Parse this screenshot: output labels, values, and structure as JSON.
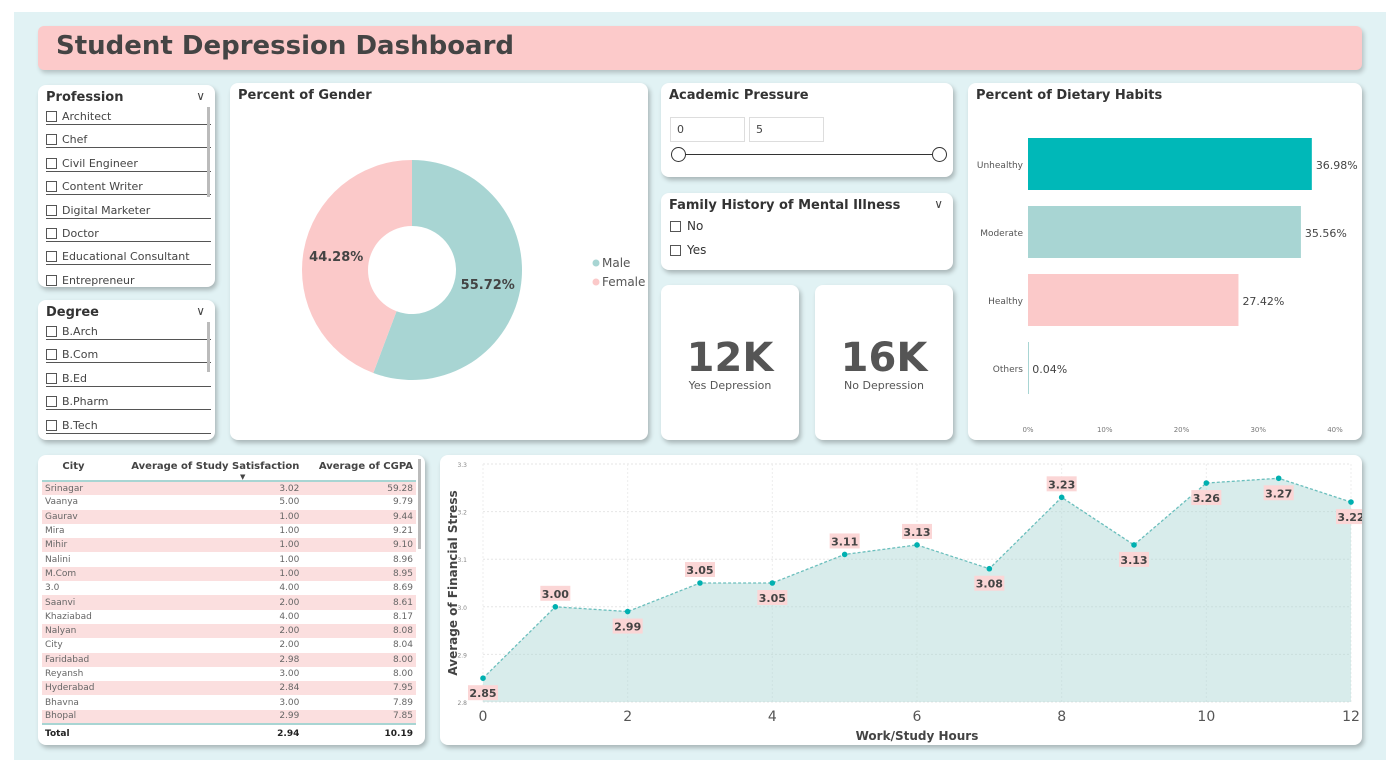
{
  "title": "Student Depression Dashboard",
  "colors": {
    "teal": "#00b8b8",
    "teal_light": "#a8d5d3",
    "pink": "#fbc9c9",
    "title_bg": "#fccaca",
    "background": "#e1f2f4"
  },
  "profession": {
    "title": "Profession",
    "items": [
      "Architect",
      "Chef",
      "Civil Engineer",
      "Content Writer",
      "Digital Marketer",
      "Doctor",
      "Educational Consultant",
      "Entrepreneur"
    ]
  },
  "degree": {
    "title": "Degree",
    "items": [
      "B.Arch",
      "B.Com",
      "B.Ed",
      "B.Pharm",
      "B.Tech"
    ]
  },
  "gender": {
    "title": "Percent of Gender",
    "slices": [
      {
        "label": "Male",
        "value": 55.72,
        "display": "55.72%",
        "color": "#a8d5d3"
      },
      {
        "label": "Female",
        "value": 44.28,
        "display": "44.28%",
        "color": "#fbc9c9"
      }
    ]
  },
  "academic": {
    "title": "Academic Pressure",
    "min": "0",
    "max": "5"
  },
  "family": {
    "title": "Family History of Mental Illness",
    "options": [
      "No",
      "Yes"
    ]
  },
  "cards": [
    {
      "value": "12K",
      "label": "Yes Depression"
    },
    {
      "value": "16K",
      "label": "No Depression"
    }
  ],
  "chart_data": [
    {
      "type": "bar",
      "orientation": "horizontal",
      "title": "Percent of Dietary Habits",
      "categories": [
        "Unhealthy",
        "Moderate",
        "Healthy",
        "Others"
      ],
      "values": [
        36.98,
        35.56,
        27.42,
        0.04
      ],
      "labels": [
        "36.98%",
        "35.56%",
        "27.42%",
        "0.04%"
      ],
      "colors": [
        "#00b8b8",
        "#a8d5d3",
        "#fbc9c9",
        "#a8d5d3"
      ],
      "xticks": [
        "0%",
        "10%",
        "20%",
        "30%",
        "40%"
      ],
      "xlim": [
        0,
        40
      ]
    },
    {
      "type": "area",
      "x": [
        0,
        1,
        2,
        3,
        4,
        5,
        6,
        7,
        8,
        9,
        10,
        11,
        12
      ],
      "y": [
        2.85,
        3.0,
        2.99,
        3.05,
        3.05,
        3.11,
        3.13,
        3.08,
        3.23,
        3.13,
        3.26,
        3.27,
        3.22
      ],
      "labels": [
        "2.85",
        "3.00",
        "2.99",
        "3.05",
        "3.05",
        "3.11",
        "3.13",
        "3.08",
        "3.23",
        "3.13",
        "3.26",
        "3.27",
        "3.22"
      ],
      "xlabel": "Work/Study Hours",
      "ylabel": "Average of Financial Stress",
      "xticks": [
        "0",
        "2",
        "4",
        "6",
        "8",
        "10",
        "12"
      ],
      "yticks": [
        "2.8",
        "2.9",
        "3.0",
        "3.1",
        "3.2",
        "3.3"
      ],
      "ylim": [
        2.8,
        3.3
      ],
      "xlim": [
        0,
        12
      ],
      "grid": true
    }
  ],
  "table": {
    "headers": [
      "City",
      "Average of Study Satisfaction",
      "Average of CGPA"
    ],
    "rows": [
      [
        "Srinagar",
        "3.02",
        "59.28"
      ],
      [
        "Vaanya",
        "5.00",
        "9.79"
      ],
      [
        "Gaurav",
        "1.00",
        "9.44"
      ],
      [
        "Mira",
        "1.00",
        "9.21"
      ],
      [
        "Mihir",
        "1.00",
        "9.10"
      ],
      [
        "Nalini",
        "1.00",
        "8.96"
      ],
      [
        "M.Com",
        "1.00",
        "8.95"
      ],
      [
        "3.0",
        "4.00",
        "8.69"
      ],
      [
        "Saanvi",
        "2.00",
        "8.61"
      ],
      [
        "Khaziabad",
        "4.00",
        "8.17"
      ],
      [
        "Nalyan",
        "2.00",
        "8.08"
      ],
      [
        "City",
        "2.00",
        "8.04"
      ],
      [
        "Faridabad",
        "2.98",
        "8.00"
      ],
      [
        "Reyansh",
        "3.00",
        "8.00"
      ],
      [
        "Hyderabad",
        "2.84",
        "7.95"
      ],
      [
        "Bhavna",
        "3.00",
        "7.89"
      ],
      [
        "Bhopal",
        "2.99",
        "7.85"
      ]
    ],
    "total": [
      "Total",
      "2.94",
      "10.19"
    ]
  }
}
